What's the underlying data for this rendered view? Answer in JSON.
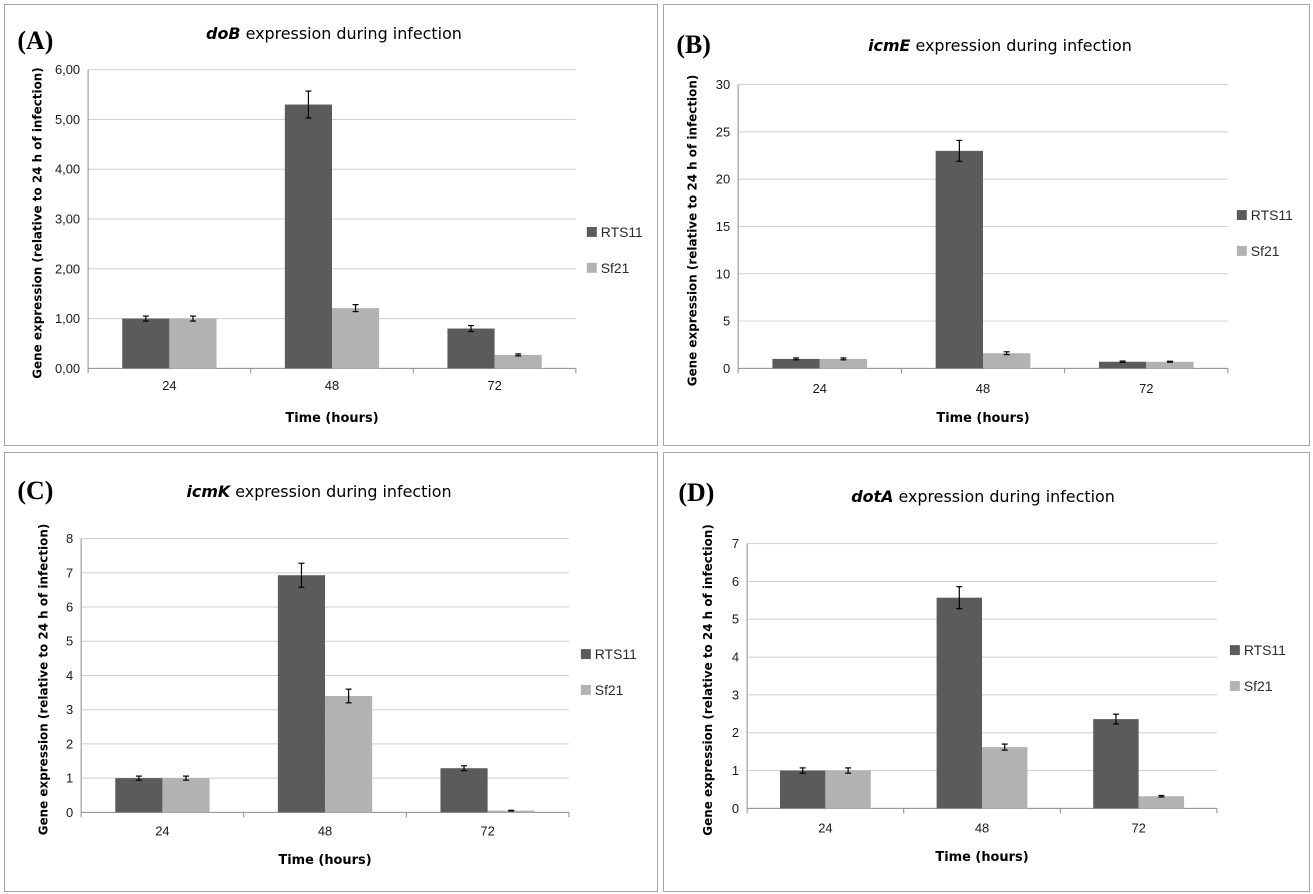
{
  "colors": {
    "RTS11": "#5b5b5b",
    "Sf21": "#b2b2b2",
    "grid": "#cfcfcf",
    "axis": "#8c8c8c",
    "errorbar": "#000000"
  },
  "chart_data": [
    {
      "type": "bar",
      "panel_label": "(A)",
      "gene": "doB",
      "title_rest": " expression during infection",
      "xlabel": "Time (hours)",
      "ylabel": "Gene expression (relative to 24 h of infection)",
      "categories": [
        "24",
        "48",
        "72"
      ],
      "ylim": [
        0,
        6
      ],
      "yticks": [
        "0,00",
        "1,00",
        "2,00",
        "3,00",
        "4,00",
        "5,00",
        "6,00"
      ],
      "series": [
        {
          "name": "RTS11",
          "values": [
            1.0,
            5.3,
            0.8
          ],
          "errors": [
            0.05,
            0.27,
            0.06
          ]
        },
        {
          "name": "Sf21",
          "values": [
            1.0,
            1.21,
            0.27
          ],
          "errors": [
            0.05,
            0.07,
            0.02
          ]
        }
      ],
      "legend": "right",
      "grid": true
    },
    {
      "type": "bar",
      "panel_label": "(B)",
      "gene": "icmE",
      "title_rest": " expression during infection",
      "xlabel": "Time (hours)",
      "ylabel": "Gene expression (relative to 24 h of infection)",
      "categories": [
        "24",
        "48",
        "72"
      ],
      "ylim": [
        0,
        30
      ],
      "yticks": [
        "0",
        "5",
        "10",
        "15",
        "20",
        "25",
        "30"
      ],
      "series": [
        {
          "name": "RTS11",
          "values": [
            1.0,
            23.0,
            0.7
          ],
          "errors": [
            0.1,
            1.1,
            0.07
          ]
        },
        {
          "name": "Sf21",
          "values": [
            1.0,
            1.6,
            0.7
          ],
          "errors": [
            0.1,
            0.15,
            0.05
          ]
        }
      ],
      "legend": "right",
      "grid": true
    },
    {
      "type": "bar",
      "panel_label": "(C)",
      "gene": "icmK",
      "title_rest": " expression during infection",
      "xlabel": "Time (hours)",
      "ylabel": "Gene expression (relative to 24 h of infection)",
      "categories": [
        "24",
        "48",
        "72"
      ],
      "ylim": [
        0,
        8
      ],
      "yticks": [
        "0",
        "1",
        "2",
        "3",
        "4",
        "5",
        "6",
        "7",
        "8"
      ],
      "series": [
        {
          "name": "RTS11",
          "values": [
            1.0,
            6.93,
            1.29
          ],
          "errors": [
            0.06,
            0.35,
            0.07
          ]
        },
        {
          "name": "Sf21",
          "values": [
            1.0,
            3.4,
            0.05
          ],
          "errors": [
            0.06,
            0.2,
            0.01
          ]
        }
      ],
      "legend": "right",
      "grid": true
    },
    {
      "type": "bar",
      "panel_label": "(D)",
      "gene": "dotA",
      "title_rest": " expression during infection",
      "xlabel": "Time (hours)",
      "ylabel": "Gene expression (relative to 24 h of infection)",
      "categories": [
        "24",
        "48",
        "72"
      ],
      "ylim": [
        0,
        7
      ],
      "yticks": [
        "0",
        "1",
        "2",
        "3",
        "4",
        "5",
        "6",
        "7"
      ],
      "series": [
        {
          "name": "RTS11",
          "values": [
            1.0,
            5.57,
            2.36
          ],
          "errors": [
            0.07,
            0.29,
            0.13
          ]
        },
        {
          "name": "Sf21",
          "values": [
            1.0,
            1.62,
            0.32
          ],
          "errors": [
            0.07,
            0.08,
            0.02
          ]
        }
      ],
      "legend": "right",
      "grid": true
    }
  ]
}
